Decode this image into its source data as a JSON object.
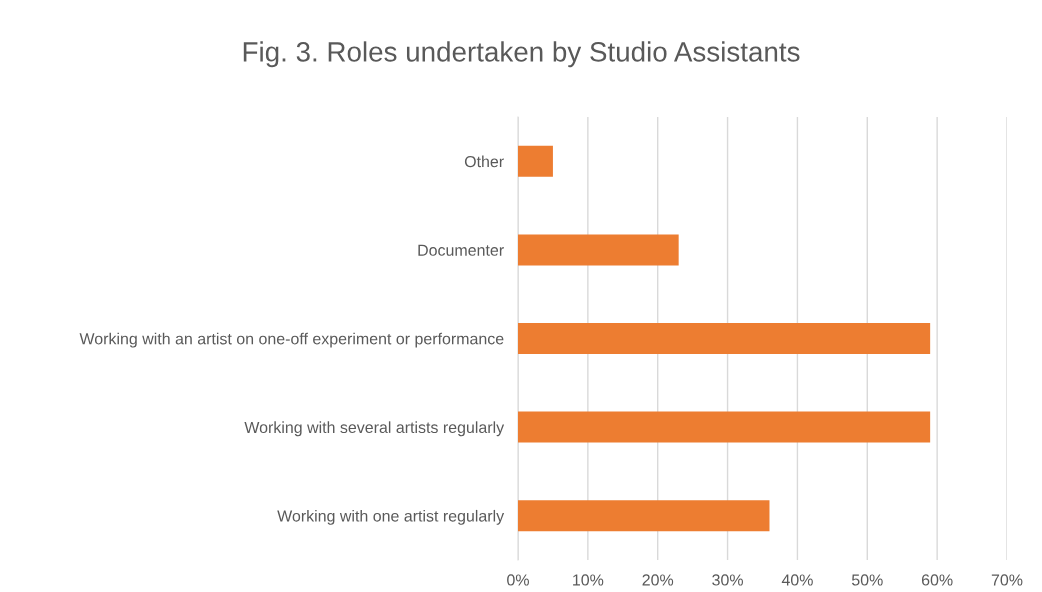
{
  "chart_data": {
    "type": "bar",
    "orientation": "horizontal",
    "title": "Fig. 3. Roles undertaken by Studio Assistants",
    "categories": [
      "Other",
      "Documenter",
      "Working with an artist on one-off experiment or performance",
      "Working with several artists regularly",
      "Working with one artist regularly"
    ],
    "values": [
      5,
      23,
      59,
      59,
      36
    ],
    "color": "#ed7d31",
    "xlim": [
      0,
      70
    ],
    "xticks": [
      {
        "value": 0,
        "label": "0%"
      },
      {
        "value": 10,
        "label": "10%"
      },
      {
        "value": 20,
        "label": "20%"
      },
      {
        "value": 30,
        "label": "30%"
      },
      {
        "value": 40,
        "label": "40%"
      },
      {
        "value": 50,
        "label": "50%"
      },
      {
        "value": 60,
        "label": "60%"
      },
      {
        "value": 70,
        "label": "70%"
      }
    ],
    "grid": "x",
    "legend": false
  }
}
